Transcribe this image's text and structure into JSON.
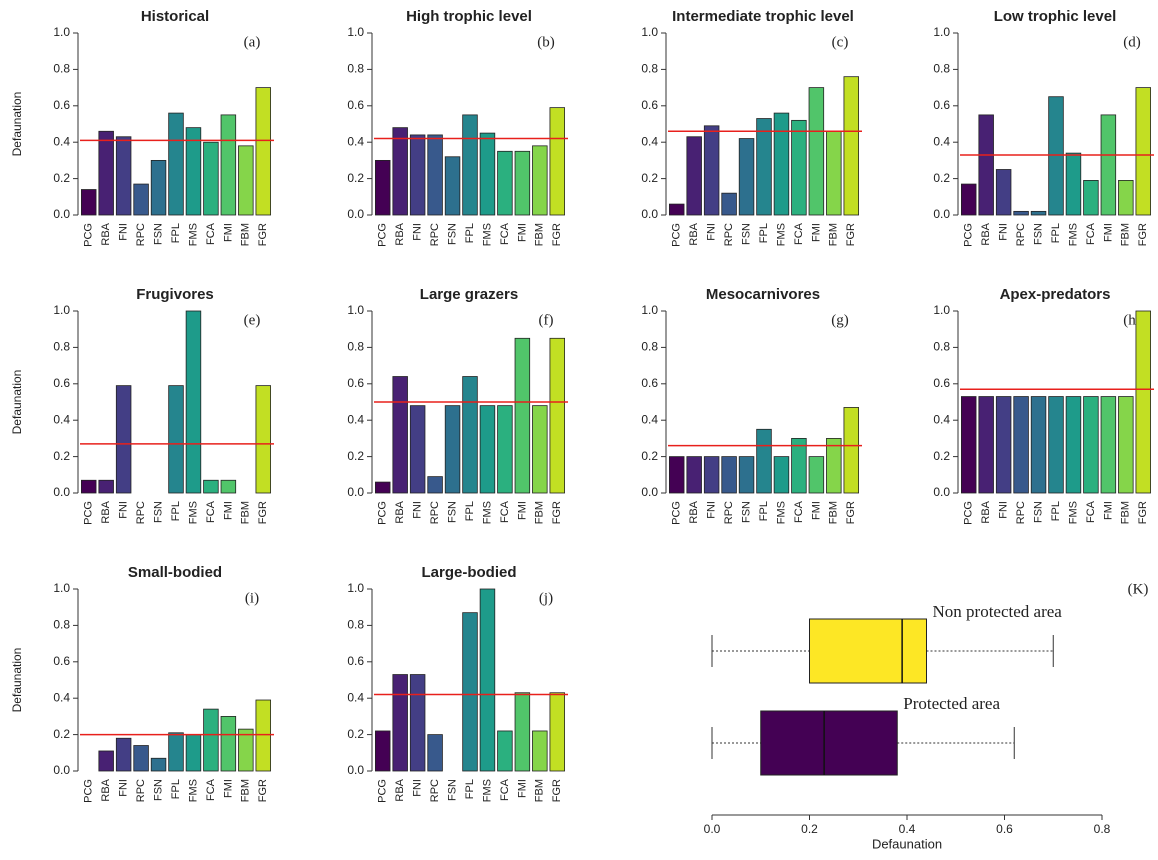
{
  "chart_data": [
    {
      "type": "bar",
      "title": "Historical",
      "panel": "(a)",
      "ylabel": "Defaunation",
      "categories": [
        "PCG",
        "RBA",
        "FNI",
        "RPC",
        "FSN",
        "FPL",
        "FMS",
        "FCA",
        "FMI",
        "FBM",
        "FGR"
      ],
      "values": [
        0.14,
        0.46,
        0.43,
        0.17,
        0.3,
        0.56,
        0.48,
        0.4,
        0.55,
        0.38,
        0.7
      ],
      "colors": [
        "#440154",
        "#482173",
        "#433E85",
        "#38598C",
        "#2D708E",
        "#25858E",
        "#1E9B8A",
        "#2BB07F",
        "#51C56A",
        "#85D54A",
        "#C2DF23"
      ],
      "reference_line": 0.41,
      "reference_color": "#e8201c",
      "ylim": [
        0,
        1
      ],
      "yticks": [
        {
          "value": 0,
          "label": "0.0"
        },
        0.2,
        0.4,
        0.6,
        0.8,
        {
          "value": 1,
          "label": "1.0"
        }
      ]
    },
    {
      "type": "bar",
      "title": "High trophic level",
      "panel": "(b)",
      "categories": [
        "PCG",
        "RBA",
        "FNI",
        "RPC",
        "FSN",
        "FPL",
        "FMS",
        "FCA",
        "FMI",
        "FBM",
        "FGR"
      ],
      "values": [
        0.3,
        0.48,
        0.44,
        0.44,
        0.32,
        0.55,
        0.45,
        0.35,
        0.35,
        0.38,
        0.59
      ],
      "colors": [
        "#440154",
        "#482173",
        "#433E85",
        "#38598C",
        "#2D708E",
        "#25858E",
        "#1E9B8A",
        "#2BB07F",
        "#51C56A",
        "#85D54A",
        "#C2DF23"
      ],
      "reference_line": 0.42,
      "reference_color": "#e8201c",
      "ylim": [
        0,
        1
      ],
      "yticks": [
        {
          "value": 0,
          "label": "0.0"
        },
        0.2,
        0.4,
        0.6,
        0.8,
        {
          "value": 1,
          "label": "1.0"
        }
      ]
    },
    {
      "type": "bar",
      "title": "Intermediate trophic level",
      "panel": "(c)",
      "categories": [
        "PCG",
        "RBA",
        "FNI",
        "RPC",
        "FSN",
        "FPL",
        "FMS",
        "FCA",
        "FMI",
        "FBM",
        "FGR"
      ],
      "values": [
        0.06,
        0.43,
        0.49,
        0.12,
        0.42,
        0.53,
        0.56,
        0.52,
        0.7,
        0.46,
        0.76
      ],
      "colors": [
        "#440154",
        "#482173",
        "#433E85",
        "#38598C",
        "#2D708E",
        "#25858E",
        "#1E9B8A",
        "#2BB07F",
        "#51C56A",
        "#85D54A",
        "#C2DF23"
      ],
      "reference_line": 0.46,
      "reference_color": "#e8201c",
      "ylim": [
        0,
        1
      ],
      "yticks": [
        {
          "value": 0,
          "label": "0.0"
        },
        0.2,
        0.4,
        0.6,
        0.8,
        {
          "value": 1,
          "label": "1.0"
        }
      ]
    },
    {
      "type": "bar",
      "title": "Low trophic level",
      "panel": "(d)",
      "categories": [
        "PCG",
        "RBA",
        "FNI",
        "RPC",
        "FSN",
        "FPL",
        "FMS",
        "FCA",
        "FMI",
        "FBM",
        "FGR"
      ],
      "values": [
        0.17,
        0.55,
        0.25,
        0.02,
        0.02,
        0.65,
        0.34,
        0.19,
        0.55,
        0.19,
        0.7
      ],
      "colors": [
        "#440154",
        "#482173",
        "#433E85",
        "#38598C",
        "#2D708E",
        "#25858E",
        "#1E9B8A",
        "#2BB07F",
        "#51C56A",
        "#85D54A",
        "#C2DF23"
      ],
      "reference_line": 0.33,
      "reference_color": "#e8201c",
      "ylim": [
        0,
        1
      ],
      "yticks": [
        {
          "value": 0,
          "label": "0.0"
        },
        0.2,
        0.4,
        0.6,
        0.8,
        {
          "value": 1,
          "label": "1.0"
        }
      ]
    },
    {
      "type": "bar",
      "title": "Frugivores",
      "panel": "(e)",
      "ylabel": "Defaunation",
      "categories": [
        "PCG",
        "RBA",
        "FNI",
        "RPC",
        "FSN",
        "FPL",
        "FMS",
        "FCA",
        "FMI",
        "FBM",
        "FGR"
      ],
      "values": [
        0.07,
        0.07,
        0.59,
        0,
        0,
        0.59,
        1.0,
        0.07,
        0.07,
        0,
        0.59
      ],
      "colors": [
        "#440154",
        "#482173",
        "#433E85",
        "#38598C",
        "#2D708E",
        "#25858E",
        "#1E9B8A",
        "#2BB07F",
        "#51C56A",
        "#85D54A",
        "#C2DF23"
      ],
      "reference_line": 0.27,
      "reference_color": "#e8201c",
      "ylim": [
        0,
        1
      ],
      "yticks": [
        {
          "value": 0,
          "label": "0.0"
        },
        0.2,
        0.4,
        0.6,
        0.8,
        {
          "value": 1,
          "label": "1.0"
        }
      ]
    },
    {
      "type": "bar",
      "title": "Large grazers",
      "panel": "(f)",
      "categories": [
        "PCG",
        "RBA",
        "FNI",
        "RPC",
        "FSN",
        "FPL",
        "FMS",
        "FCA",
        "FMI",
        "FBM",
        "FGR"
      ],
      "values": [
        0.06,
        0.64,
        0.48,
        0.09,
        0.48,
        0.64,
        0.48,
        0.48,
        0.85,
        0.48,
        0.85
      ],
      "colors": [
        "#440154",
        "#482173",
        "#433E85",
        "#38598C",
        "#2D708E",
        "#25858E",
        "#1E9B8A",
        "#2BB07F",
        "#51C56A",
        "#85D54A",
        "#C2DF23"
      ],
      "reference_line": 0.5,
      "reference_color": "#e8201c",
      "ylim": [
        0,
        1
      ],
      "yticks": [
        {
          "value": 0,
          "label": "0.0"
        },
        0.2,
        0.4,
        0.6,
        0.8,
        {
          "value": 1,
          "label": "1.0"
        }
      ]
    },
    {
      "type": "bar",
      "title": "Mesocarnivores",
      "panel": "(g)",
      "categories": [
        "PCG",
        "RBA",
        "FNI",
        "RPC",
        "FSN",
        "FPL",
        "FMS",
        "FCA",
        "FMI",
        "FBM",
        "FGR"
      ],
      "values": [
        0.2,
        0.2,
        0.2,
        0.2,
        0.2,
        0.35,
        0.2,
        0.3,
        0.2,
        0.3,
        0.47
      ],
      "colors": [
        "#440154",
        "#482173",
        "#433E85",
        "#38598C",
        "#2D708E",
        "#25858E",
        "#1E9B8A",
        "#2BB07F",
        "#51C56A",
        "#85D54A",
        "#C2DF23"
      ],
      "reference_line": 0.26,
      "reference_color": "#e8201c",
      "ylim": [
        0,
        1
      ],
      "yticks": [
        {
          "value": 0,
          "label": "0.0"
        },
        0.2,
        0.4,
        0.6,
        0.8,
        {
          "value": 1,
          "label": "1.0"
        }
      ]
    },
    {
      "type": "bar",
      "title": "Apex-predators",
      "panel": "(h)",
      "categories": [
        "PCG",
        "RBA",
        "FNI",
        "RPC",
        "FSN",
        "FPL",
        "FMS",
        "FCA",
        "FMI",
        "FBM",
        "FGR"
      ],
      "values": [
        0.53,
        0.53,
        0.53,
        0.53,
        0.53,
        0.53,
        0.53,
        0.53,
        0.53,
        0.53,
        1.0
      ],
      "colors": [
        "#440154",
        "#482173",
        "#433E85",
        "#38598C",
        "#2D708E",
        "#25858E",
        "#1E9B8A",
        "#2BB07F",
        "#51C56A",
        "#85D54A",
        "#C2DF23"
      ],
      "reference_line": 0.57,
      "reference_color": "#e8201c",
      "ylim": [
        0,
        1
      ],
      "yticks": [
        {
          "value": 0,
          "label": "0.0"
        },
        0.2,
        0.4,
        0.6,
        0.8,
        {
          "value": 1,
          "label": "1.0"
        }
      ]
    },
    {
      "type": "bar",
      "title": "Small-bodied",
      "panel": "(i)",
      "ylabel": "Defaunation",
      "categories": [
        "PCG",
        "RBA",
        "FNI",
        "RPC",
        "FSN",
        "FPL",
        "FMS",
        "FCA",
        "FMI",
        "FBM",
        "FGR"
      ],
      "values": [
        0,
        0.11,
        0.18,
        0.14,
        0.07,
        0.21,
        0.2,
        0.34,
        0.3,
        0.23,
        0.39
      ],
      "colors": [
        "#440154",
        "#482173",
        "#433E85",
        "#38598C",
        "#2D708E",
        "#25858E",
        "#1E9B8A",
        "#2BB07F",
        "#51C56A",
        "#85D54A",
        "#C2DF23"
      ],
      "reference_line": 0.2,
      "reference_color": "#e8201c",
      "ylim": [
        0,
        1
      ],
      "yticks": [
        {
          "value": 0,
          "label": "0.0"
        },
        0.2,
        0.4,
        0.6,
        0.8,
        {
          "value": 1,
          "label": "1.0"
        }
      ]
    },
    {
      "type": "bar",
      "title": "Large-bodied",
      "panel": "(j)",
      "categories": [
        "PCG",
        "RBA",
        "FNI",
        "RPC",
        "FSN",
        "FPL",
        "FMS",
        "FCA",
        "FMI",
        "FBM",
        "FGR"
      ],
      "values": [
        0.22,
        0.53,
        0.53,
        0.2,
        0,
        0.87,
        1.0,
        0.22,
        0.43,
        0.22,
        0.43
      ],
      "colors": [
        "#440154",
        "#482173",
        "#433E85",
        "#38598C",
        "#2D708E",
        "#25858E",
        "#1E9B8A",
        "#2BB07F",
        "#51C56A",
        "#85D54A",
        "#C2DF23"
      ],
      "reference_line": 0.42,
      "reference_color": "#e8201c",
      "ylim": [
        0,
        1
      ],
      "yticks": [
        {
          "value": 0,
          "label": "0.0"
        },
        0.2,
        0.4,
        0.6,
        0.8,
        {
          "value": 1,
          "label": "1.0"
        }
      ]
    },
    {
      "type": "boxplot",
      "panel": "(K)",
      "xlabel": "Defaunation",
      "series": [
        {
          "name": "Non protected area",
          "color": "#fde725",
          "min": 0,
          "q1": 0.2,
          "median": 0.39,
          "q3": 0.44,
          "max": 0.7
        },
        {
          "name": "Protected area",
          "color": "#440154",
          "min": 0,
          "q1": 0.1,
          "median": 0.23,
          "q3": 0.38,
          "max": 0.62
        }
      ],
      "xlim": [
        0,
        0.8
      ],
      "xticks": [
        {
          "value": 0,
          "label": "0.0"
        },
        0.2,
        0.4,
        0.6,
        0.8
      ]
    }
  ]
}
